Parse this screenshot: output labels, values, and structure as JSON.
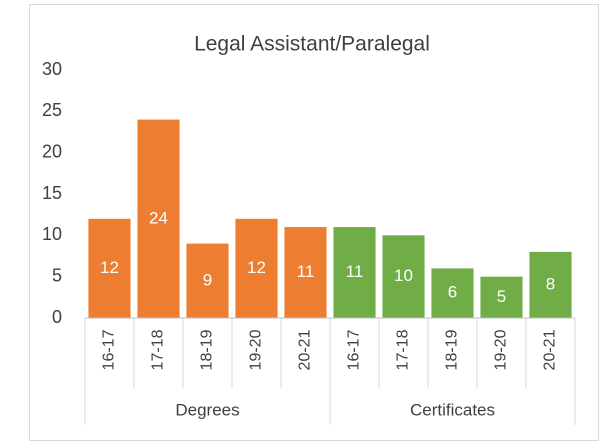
{
  "chart_data": {
    "type": "bar",
    "title": "Legal Assistant/Paralegal",
    "categories": [
      "16-17",
      "17-18",
      "18-19",
      "19-20",
      "20-21"
    ],
    "series": [
      {
        "name": "Degrees",
        "color": "#ed7d31",
        "values": [
          12,
          24,
          9,
          12,
          11
        ]
      },
      {
        "name": "Certificates",
        "color": "#70ad47",
        "values": [
          11,
          10,
          6,
          5,
          8
        ]
      }
    ],
    "ylim": [
      0,
      30
    ],
    "yticks": [
      0,
      5,
      10,
      15,
      20,
      25,
      30
    ],
    "grid": false
  }
}
